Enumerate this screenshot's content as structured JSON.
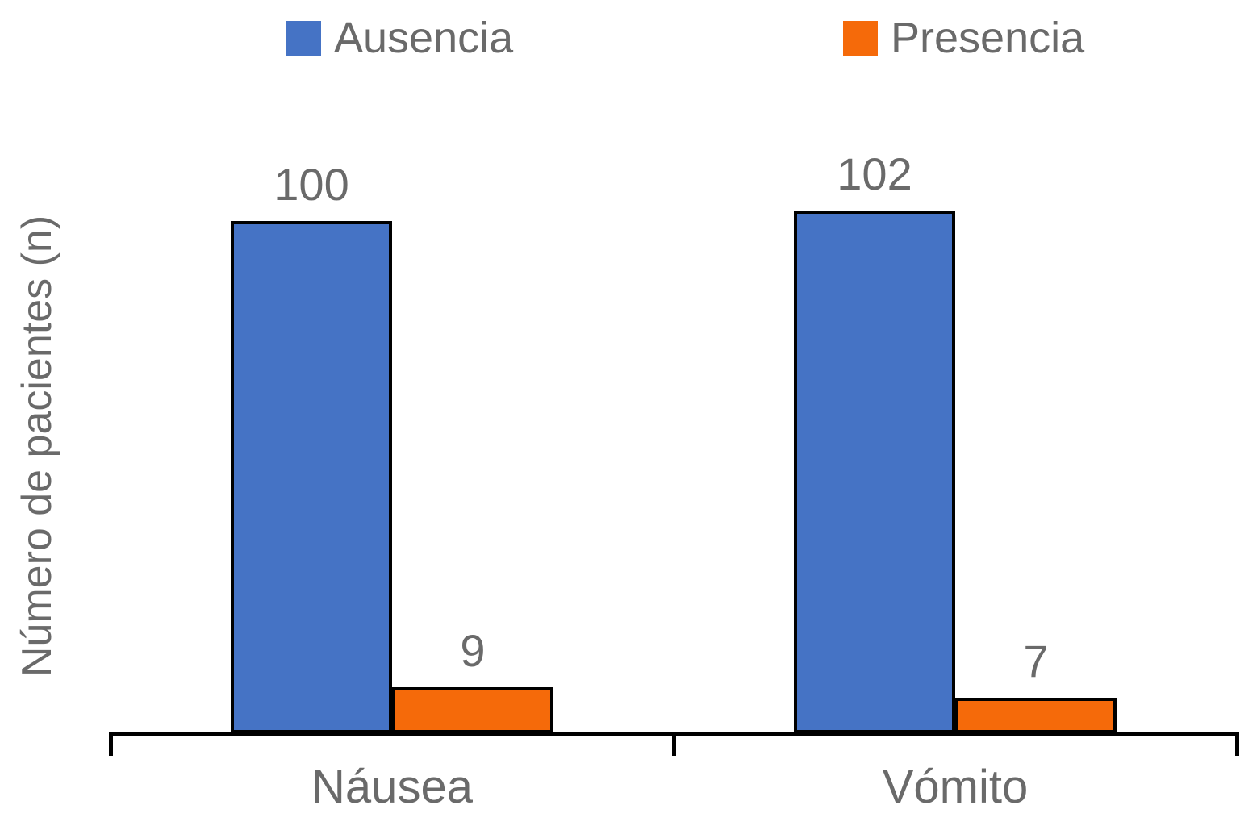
{
  "chart_data": {
    "type": "bar",
    "title": "",
    "xlabel": "",
    "ylabel": "Número de pacientes (n)",
    "categories": [
      "Náusea",
      "Vómito"
    ],
    "series": [
      {
        "name": "Ausencia",
        "color": "#4573C5",
        "values": [
          100,
          102
        ]
      },
      {
        "name": "Presencia",
        "color": "#F56A0A",
        "values": [
          9,
          7
        ]
      }
    ],
    "data_labels": [
      "100",
      "9",
      "102",
      "7"
    ],
    "ylim": [
      0,
      108
    ],
    "grid": false,
    "legend_position": "top",
    "axis_color": "#000000",
    "text_color": "#6a6a6a",
    "bar_border_color": "#000000"
  }
}
